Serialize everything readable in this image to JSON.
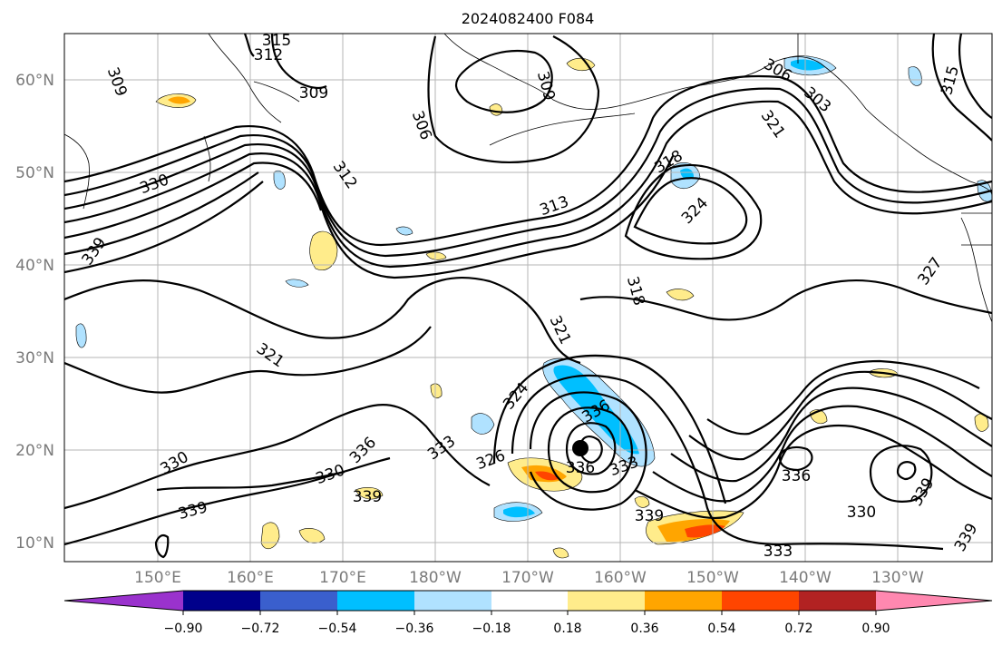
{
  "title": "2024082400 F084",
  "lat_labels": [
    "60°N",
    "50°N",
    "40°N",
    "30°N",
    "20°N",
    "10°N"
  ],
  "lon_labels": [
    "150°E",
    "160°E",
    "170°E",
    "180°W",
    "170°W",
    "160°W",
    "150°W",
    "140°W",
    "130°W"
  ],
  "colorbar": {
    "tick_labels": [
      "−0.90",
      "−0.72",
      "−0.54",
      "−0.36",
      "−0.18",
      "0.18",
      "0.36",
      "0.54",
      "0.72",
      "0.90"
    ],
    "colors": [
      "#9a32cd",
      "#00008b",
      "#3a5fcd",
      "#00bfff",
      "#b0e2ff",
      "#ffffff",
      "#ffec8b",
      "#ffa500",
      "#ff4500",
      "#b22222",
      "#ff88b0"
    ]
  },
  "contour_labels": [
    "315",
    "312",
    "309",
    "306",
    "309",
    "309",
    "306",
    "303",
    "315",
    "312",
    "330",
    "339",
    "318",
    "324",
    "321",
    "313",
    "318",
    "321",
    "321",
    "327",
    "324",
    "336",
    "330",
    "330",
    "336",
    "333",
    "339",
    "339",
    "326",
    "336",
    "333",
    "339",
    "330",
    "336",
    "339",
    "333",
    "339"
  ],
  "coastline_color": "#000000",
  "contour_color": "#000000"
}
